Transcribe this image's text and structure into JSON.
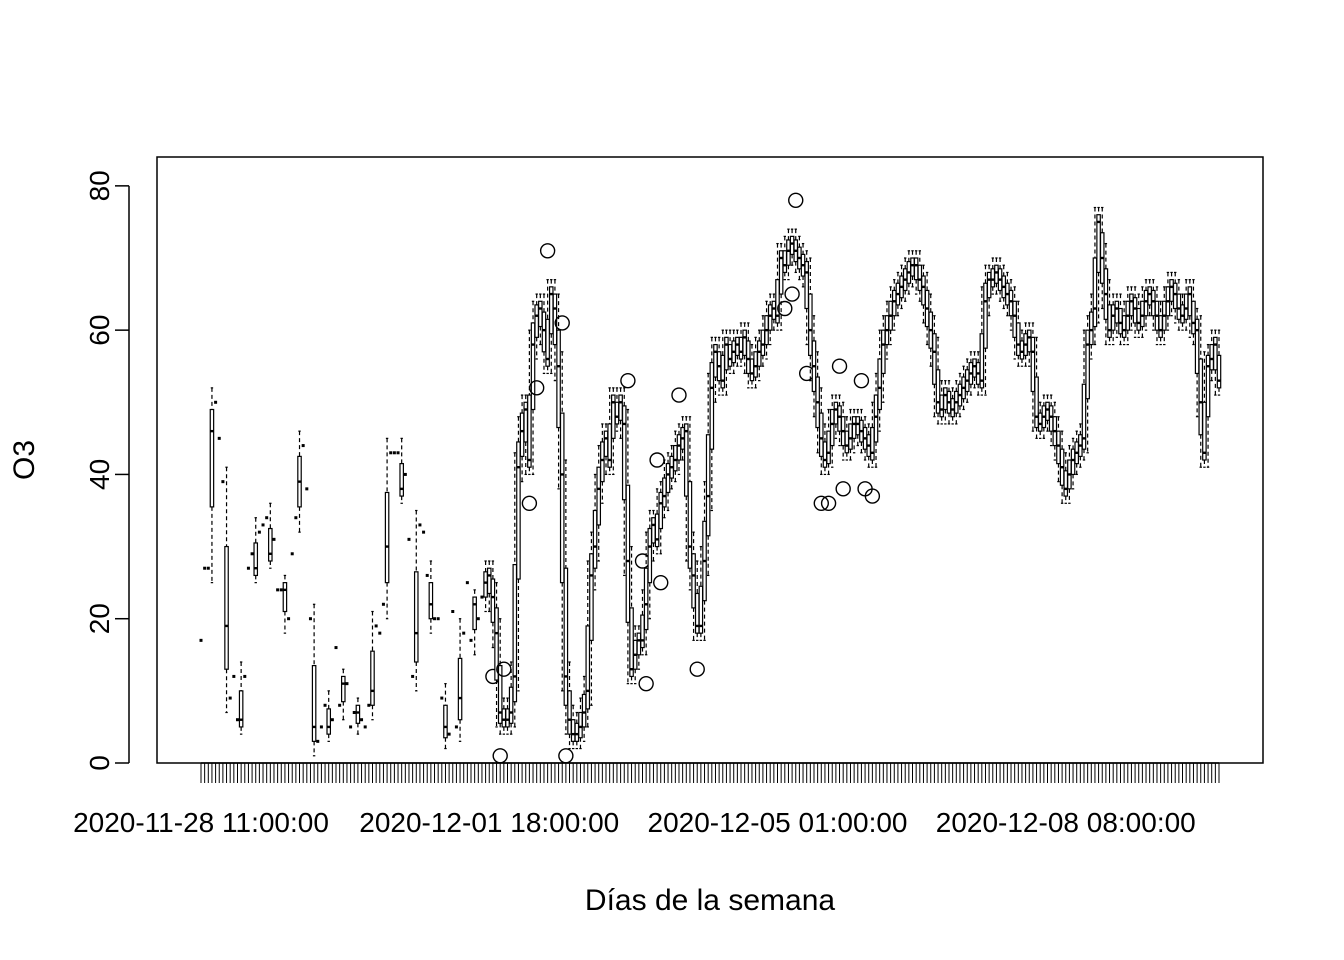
{
  "chart_data": {
    "type": "boxplot",
    "title": "",
    "xlabel": "Días de la semana",
    "ylabel": "O3",
    "ylim": [
      0,
      84
    ],
    "y_ticks": [
      0,
      20,
      40,
      60,
      80
    ],
    "x_tick_labels": [
      "2020-11-28 11:00:00",
      "2020-12-01 18:00:00",
      "2020-12-05 01:00:00",
      "2020-12-08 08:00:00"
    ],
    "x_tick_label_index": [
      0,
      79,
      158,
      237
    ],
    "grid": false,
    "legend": "none",
    "series_color": "#000000",
    "medians": [
      17,
      27,
      27,
      46,
      50,
      45,
      39,
      19,
      9,
      12,
      6,
      6,
      12,
      27,
      29,
      27,
      32,
      33,
      34,
      29,
      31,
      24,
      24,
      24,
      20,
      29,
      34,
      39,
      44,
      38,
      20,
      5,
      3,
      5,
      8,
      5,
      6,
      16,
      8,
      11,
      11,
      5,
      7,
      7,
      6,
      5,
      8,
      10,
      19,
      18,
      22,
      30,
      43,
      43,
      43,
      38,
      40,
      31,
      12,
      18,
      33,
      32,
      26,
      22,
      20,
      20,
      9,
      5,
      4,
      21,
      5,
      9,
      18,
      25,
      17,
      22,
      20,
      23,
      25,
      26,
      23,
      18,
      7,
      6,
      6,
      7,
      12,
      41,
      46,
      49,
      42,
      58,
      62,
      63,
      60,
      56,
      65,
      63,
      55,
      40,
      12,
      6,
      4,
      4,
      5,
      7,
      10,
      26,
      30,
      38,
      42,
      45,
      42,
      50,
      48,
      50,
      47,
      28,
      13,
      15,
      17,
      17,
      22,
      30,
      33,
      31,
      36,
      37,
      40,
      41,
      42,
      44,
      45,
      46,
      30,
      26,
      19,
      19,
      28,
      37,
      52,
      57,
      55,
      53,
      58,
      56,
      57,
      58,
      57,
      59,
      56,
      54,
      55,
      57,
      58,
      60,
      62,
      63,
      62,
      70,
      69,
      71,
      72,
      71,
      70,
      69,
      68,
      60,
      55,
      50,
      45,
      42,
      43,
      47,
      49,
      48,
      46,
      44,
      45,
      47,
      47,
      46,
      45,
      44,
      43,
      48,
      52,
      58,
      60,
      62,
      64,
      65,
      66,
      67,
      68,
      69,
      69,
      67,
      66,
      63,
      60,
      57,
      50,
      49,
      51,
      50,
      49,
      50,
      51,
      52,
      53,
      54,
      55,
      54,
      53,
      64,
      67,
      67,
      68,
      67,
      66,
      65,
      64,
      62,
      58,
      57,
      58,
      59,
      57,
      48,
      47,
      48,
      49,
      48,
      46,
      44,
      41,
      38,
      40,
      42,
      43,
      44,
      45,
      58,
      60,
      63,
      75,
      70,
      65,
      60,
      62,
      63,
      61,
      60,
      62,
      64,
      63,
      61,
      62,
      64,
      65,
      64,
      62,
      60,
      62,
      64,
      66,
      65,
      63,
      62,
      63,
      65,
      61,
      60,
      50,
      43,
      55,
      56,
      58,
      53
    ]
  }
}
